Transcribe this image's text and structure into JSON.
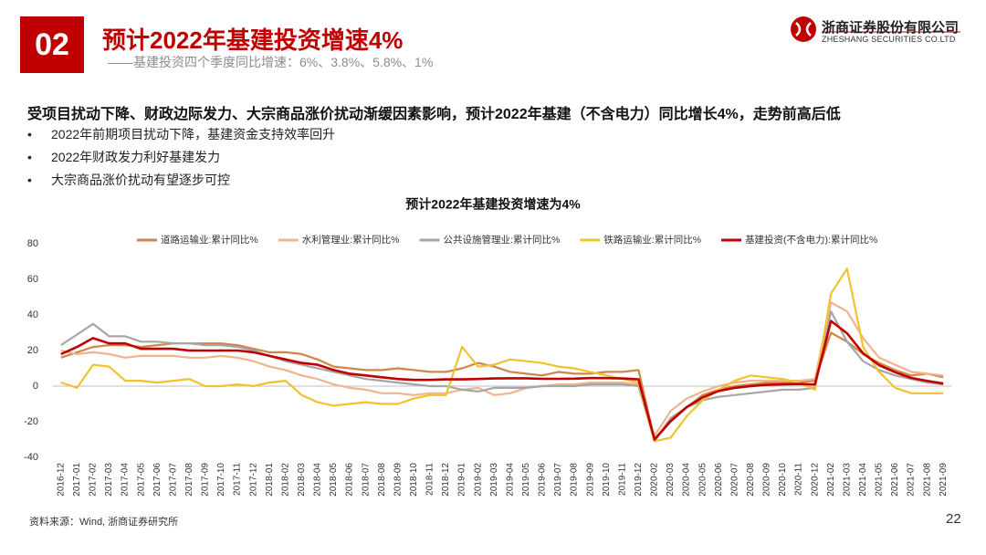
{
  "header": {
    "number": "02",
    "title": "预计2022年基建投资增速4%",
    "subtitle": "——基建投资四个季度同比增速：6%、3.8%、5.8%、1%"
  },
  "logo": {
    "name": "浙商证券股份有限公司",
    "english": "ZHESHANG SECURITIES CO.LTD"
  },
  "headline": "受项目扰动下降、财政边际发力、大宗商品涨价扰动渐缓因素影响，预计2022年基建（不含电力）同比增长4%，走势前高后低",
  "bullets": [
    "2022年前期项目扰动下降，基建资金支持效率回升",
    "2022年财政发力利好基建发力",
    "大宗商品涨价扰动有望逐步可控"
  ],
  "chart_data": {
    "type": "line",
    "title": "预计2022年基建投资增速为4%",
    "categories": [
      "2016-12",
      "2017-01",
      "2017-02",
      "2017-03",
      "2017-04",
      "2017-05",
      "2017-06",
      "2017-07",
      "2017-08",
      "2017-09",
      "2017-10",
      "2017-11",
      "2017-12",
      "2018-01",
      "2018-02",
      "2018-03",
      "2018-04",
      "2018-05",
      "2018-06",
      "2018-07",
      "2018-08",
      "2018-09",
      "2018-10",
      "2018-11",
      "2018-12",
      "2019-01",
      "2019-02",
      "2019-03",
      "2019-04",
      "2019-05",
      "2019-06",
      "2019-07",
      "2019-08",
      "2019-09",
      "2019-10",
      "2019-11",
      "2019-12",
      "2020-02",
      "2020-03",
      "2020-04",
      "2020-05",
      "2020-06",
      "2020-07",
      "2020-08",
      "2020-09",
      "2020-10",
      "2020-11",
      "2020-12",
      "2021-02",
      "2021-03",
      "2021-04",
      "2021-05",
      "2021-06",
      "2021-07",
      "2021-08",
      "2021-09"
    ],
    "series": [
      {
        "name": "道路运输业:累计同比%",
        "color": "#d0854a",
        "values": [
          16,
          19,
          22,
          23,
          23,
          22,
          23,
          24,
          24,
          24,
          24,
          23,
          21,
          19,
          19,
          18,
          15,
          11,
          10,
          9,
          9,
          10,
          9,
          8,
          8,
          10,
          13,
          11,
          8,
          7,
          6,
          8,
          7,
          7,
          8,
          8,
          9,
          -30,
          -20,
          -12,
          -5,
          -2,
          0,
          1,
          2,
          2,
          2,
          3,
          30,
          25,
          18,
          13,
          9,
          6,
          7,
          5
        ]
      },
      {
        "name": "水利管理业:累计同比%",
        "color": "#f0b48e",
        "values": [
          20,
          18,
          19,
          18,
          16,
          17,
          17,
          17,
          16,
          16,
          17,
          16,
          14,
          11,
          9,
          6,
          4,
          1,
          -1,
          -2,
          -4,
          -4,
          -5,
          -4,
          -4,
          -2,
          -1,
          -5,
          -4,
          -1,
          0,
          1,
          1,
          2,
          2,
          2,
          1,
          -28,
          -14,
          -7,
          -3,
          0,
          2,
          3,
          3,
          3,
          3,
          4,
          47,
          42,
          27,
          16,
          12,
          8,
          7,
          6
        ]
      },
      {
        "name": "公共设施管理业:累计同比%",
        "color": "#a6a6a6",
        "values": [
          23,
          29,
          35,
          28,
          28,
          25,
          25,
          24,
          24,
          23,
          23,
          22,
          20,
          17,
          14,
          12,
          10,
          8,
          6,
          4,
          3,
          2,
          1,
          0,
          0,
          -2,
          -3,
          -1,
          -1,
          -1,
          0,
          0,
          0,
          1,
          1,
          1,
          0,
          -31,
          -18,
          -12,
          -8,
          -6,
          -5,
          -4,
          -3,
          -2,
          -2,
          -1,
          42,
          25,
          14,
          9,
          6,
          4,
          2,
          1
        ]
      },
      {
        "name": "铁路运输业:累计同比%",
        "color": "#f2c12e",
        "values": [
          2,
          -1,
          12,
          11,
          3,
          3,
          2,
          3,
          4,
          0,
          0,
          1,
          0,
          2,
          3,
          -5,
          -9,
          -11,
          -10,
          -9,
          -10,
          -10,
          -7,
          -5,
          -5,
          22,
          11,
          12,
          15,
          14,
          13,
          11,
          10,
          8,
          6,
          4,
          2,
          -31,
          -29,
          -17,
          -8,
          -2,
          3,
          6,
          5,
          4,
          2,
          -2,
          52,
          66,
          22,
          8,
          -1,
          -4,
          -4,
          -4
        ]
      },
      {
        "name": "基建投资(不含电力):累计同比%",
        "color": "#c00000",
        "values": [
          18,
          22,
          27,
          24,
          24,
          21,
          21,
          21,
          20,
          20,
          20,
          20,
          19,
          17,
          15,
          13,
          12,
          9,
          7,
          6,
          5,
          4,
          3.5,
          3.5,
          3.8,
          3.8,
          4,
          4.3,
          4.4,
          4.4,
          4.1,
          4.1,
          4.2,
          4.5,
          4.5,
          4.3,
          3.8,
          -30,
          -19.7,
          -11.8,
          -6.3,
          -2.7,
          -1,
          0,
          0.7,
          1,
          1.2,
          0.9,
          36.6,
          29.7,
          18.4,
          11.8,
          7.8,
          4.6,
          2.9,
          1.5
        ]
      }
    ],
    "ylim": [
      -40,
      80
    ],
    "yticks": [
      -40,
      -20,
      0,
      20,
      40,
      60,
      80
    ],
    "grid": false,
    "legend": "top"
  },
  "footer": {
    "source": "资料来源：Wind, 浙商证券研究所",
    "page": "22"
  }
}
